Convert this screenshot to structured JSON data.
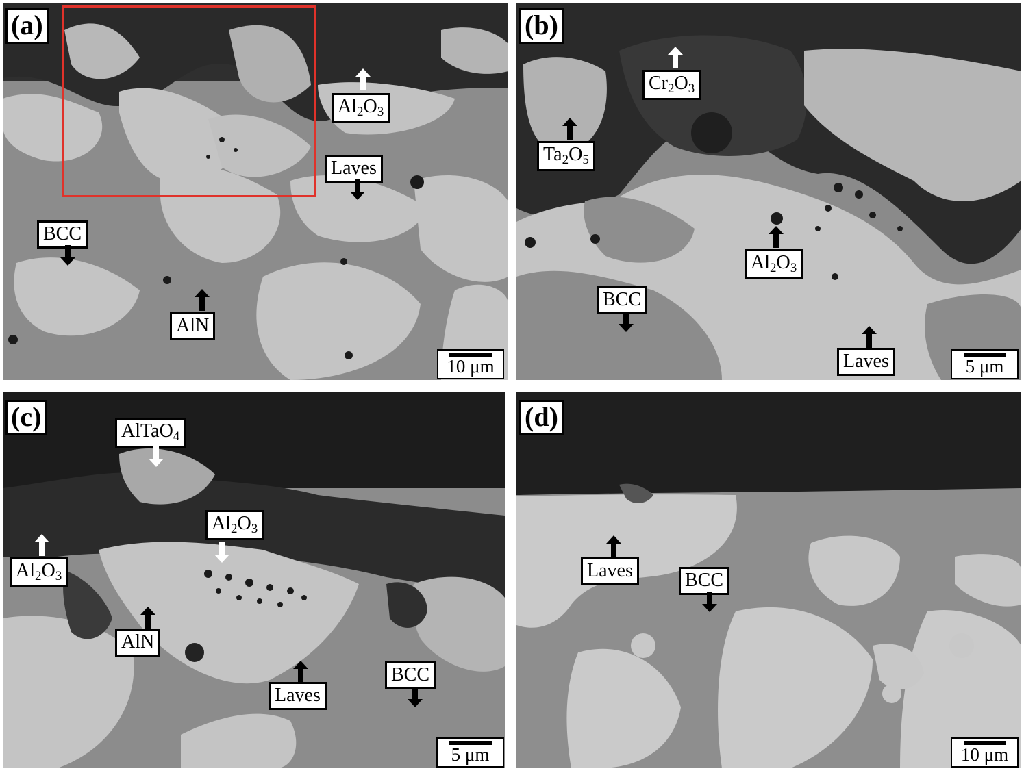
{
  "figure": {
    "panels": [
      {
        "id": "a",
        "panel_label": "(a)",
        "scale_bar": "10 μm",
        "labels": [
          {
            "main": "Al",
            "sub": "2",
            "main2": "O",
            "sub2": "3"
          },
          {
            "main": "Laves"
          },
          {
            "main": "BCC"
          },
          {
            "main": "AlN"
          }
        ]
      },
      {
        "id": "b",
        "panel_label": "(b)",
        "scale_bar": "5 μm",
        "labels": [
          {
            "main": "Cr",
            "sub": "2",
            "main2": "O",
            "sub2": "3"
          },
          {
            "main": "Ta",
            "sub": "2",
            "main2": "O",
            "sub2": "5"
          },
          {
            "main": "Al",
            "sub": "2",
            "main2": "O",
            "sub2": "3"
          },
          {
            "main": "BCC"
          },
          {
            "main": "Laves"
          }
        ]
      },
      {
        "id": "c",
        "panel_label": "(c)",
        "scale_bar": "5 μm",
        "labels": [
          {
            "main": "AlTaO",
            "sub": "4"
          },
          {
            "main": "Al",
            "sub": "2",
            "main2": "O",
            "sub2": "3"
          },
          {
            "main": "Al",
            "sub": "2",
            "main2": "O",
            "sub2": "3"
          },
          {
            "main": "AlN"
          },
          {
            "main": "Laves"
          },
          {
            "main": "BCC"
          }
        ]
      },
      {
        "id": "d",
        "panel_label": "(d)",
        "scale_bar": "10 μm",
        "labels": [
          {
            "main": "Laves"
          },
          {
            "main": "BCC"
          }
        ]
      }
    ],
    "colors": {
      "oxide_dark": "#2a2a2a",
      "void_black": "#1a1a1a",
      "bcc_matrix": "#8c8c8c",
      "laves_phase": "#c4c4c4",
      "roi_box": "#e0322a",
      "arrow_black": "#000000",
      "arrow_white": "#ffffff"
    }
  }
}
